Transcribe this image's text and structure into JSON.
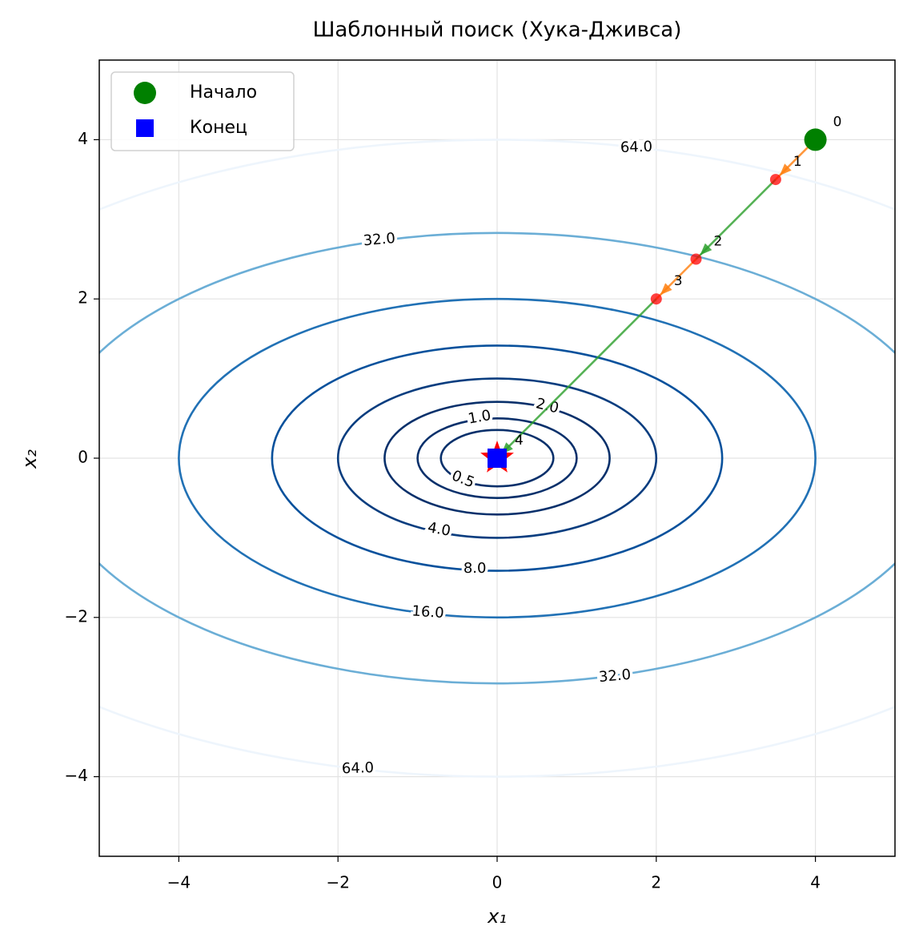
{
  "chart_data": {
    "type": "contour",
    "title": "Шаблонный поиск (Хука-Дживса)",
    "xlabel": "x₁",
    "ylabel": "x₂",
    "xlim": [
      -5,
      5
    ],
    "ylim": [
      -5,
      5
    ],
    "xticks": [
      {
        "value": -4,
        "label": "−4"
      },
      {
        "value": -2,
        "label": "−2"
      },
      0,
      2,
      4
    ],
    "yticks": [
      {
        "value": -4,
        "label": "−4"
      },
      {
        "value": -2,
        "label": "−2"
      },
      0,
      2,
      4
    ],
    "grid": true,
    "levels": [
      {
        "value": 0.5,
        "label": "0.5"
      },
      {
        "value": 1,
        "label": "1.0"
      },
      {
        "value": 2,
        "label": "2.0"
      },
      {
        "value": 4,
        "label": "4.0"
      },
      {
        "value": 8,
        "label": "8.0"
      },
      {
        "value": 16,
        "label": "16.0"
      },
      {
        "value": 32,
        "label": "32.0"
      },
      {
        "value": 64,
        "label": "64.0"
      }
    ],
    "level_colors": [
      "#08306b",
      "#08306b",
      "#08306b",
      "#083d7f",
      "#08519c",
      "#2171b5",
      "#6baed6",
      "#eef5fc"
    ],
    "path": {
      "x": [
        4,
        3.5,
        2.5,
        2,
        0
      ],
      "y": [
        4,
        3.5,
        2.5,
        2,
        0
      ],
      "steps": [
        0,
        1,
        2,
        3,
        4
      ],
      "point_color": "red"
    },
    "move_colors": [
      "#ff7f0e",
      "#2ca02c",
      "#ff7f0e",
      "#2ca02c"
    ],
    "legend": "upper left",
    "series": [
      {
        "name": "Начало",
        "color": "green",
        "x": [
          4
        ],
        "y": [
          4
        ]
      },
      {
        "name": "Конец",
        "color": "blue",
        "x": [
          0
        ],
        "y": [
          0
        ]
      }
    ]
  }
}
